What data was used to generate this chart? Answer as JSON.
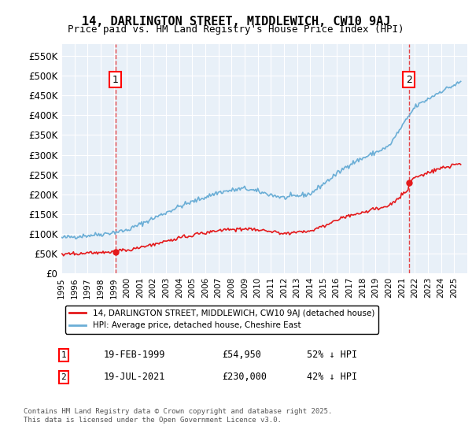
{
  "title": "14, DARLINGTON STREET, MIDDLEWICH, CW10 9AJ",
  "subtitle": "Price paid vs. HM Land Registry's House Price Index (HPI)",
  "hpi_label": "HPI: Average price, detached house, Cheshire East",
  "property_label": "14, DARLINGTON STREET, MIDDLEWICH, CW10 9AJ (detached house)",
  "footnote": "Contains HM Land Registry data © Crown copyright and database right 2025.\nThis data is licensed under the Open Government Licence v3.0.",
  "annotation1": {
    "label": "1",
    "date": "19-FEB-1999",
    "price": 54950,
    "note": "52% ↓ HPI"
  },
  "annotation2": {
    "label": "2",
    "date": "19-JUL-2021",
    "price": 230000,
    "note": "42% ↓ HPI"
  },
  "hpi_color": "#6baed6",
  "property_color": "#e41a1c",
  "dashed_line_color": "#e41a1c",
  "background_color": "#e8f0f8",
  "ylim": [
    0,
    580000
  ],
  "yticks": [
    0,
    50000,
    100000,
    150000,
    200000,
    250000,
    300000,
    350000,
    400000,
    450000,
    500000,
    550000
  ],
  "ytick_labels": [
    "£0",
    "£50K",
    "£100K",
    "£150K",
    "£200K",
    "£250K",
    "£300K",
    "£350K",
    "£400K",
    "£450K",
    "£500K",
    "£550K"
  ]
}
